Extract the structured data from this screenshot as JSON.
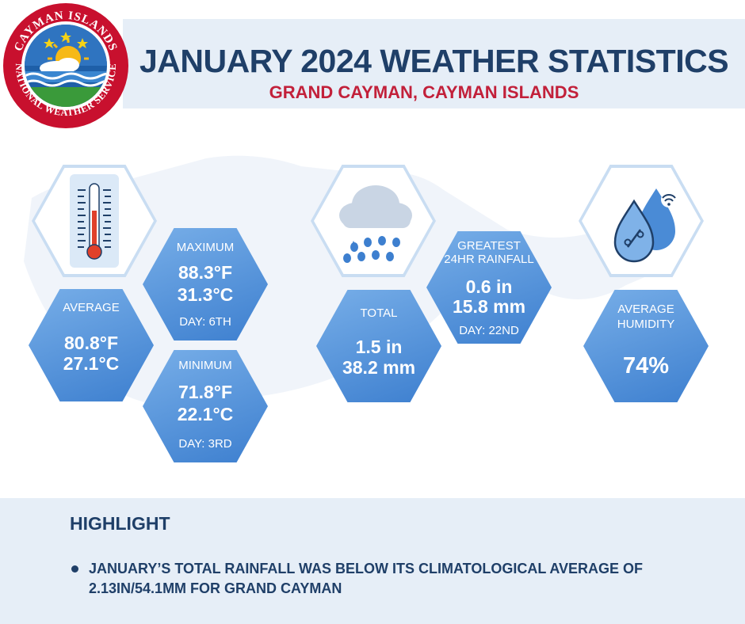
{
  "header": {
    "title": "JANUARY 2024 WEATHER STATISTICS",
    "subtitle": "GRAND CAYMAN, CAYMAN ISLANDS"
  },
  "logo": {
    "text_top": "CAYMAN ISLANDS",
    "text_bottom": "NATIONAL WEATHER SERVICE",
    "colors": {
      "ring": "#c8102e",
      "inner": "#ffffff",
      "sky": "#2a6db5",
      "sun": "#f6b916",
      "grass": "#3a9a3a"
    }
  },
  "temperature": {
    "icon": "thermometer-icon",
    "average": {
      "label": "AVERAGE",
      "f": "80.8°F",
      "c": "27.1°C"
    },
    "maximum": {
      "label": "MAXIMUM",
      "f": "88.3°F",
      "c": "31.3°C",
      "day": "DAY: 6TH"
    },
    "minimum": {
      "label": "MINIMUM",
      "f": "71.8°F",
      "c": "22.1°C",
      "day": "DAY: 3RD"
    }
  },
  "rainfall": {
    "icon": "rain-cloud-icon",
    "total": {
      "label": "TOTAL",
      "in": "1.5 in",
      "mm": "38.2 mm"
    },
    "greatest": {
      "label_line1": "GREATEST",
      "label_line2": "24HR RAINFALL",
      "in": "0.6 in",
      "mm": "15.8 mm",
      "day": "DAY: 22ND"
    }
  },
  "humidity": {
    "icon": "humidity-drops-icon",
    "average": {
      "label_line1": "AVERAGE",
      "label_line2": "HUMIDITY",
      "value": "74%"
    }
  },
  "highlight": {
    "title": "HIGHLIGHT",
    "items": [
      "JANUARY’S TOTAL RAINFALL WAS BELOW ITS CLIMATOLOGICAL AVERAGE OF 2.13IN/54.1MM FOR GRAND CAYMAN"
    ]
  },
  "colors": {
    "navy": "#1f3f68",
    "red": "#c2203a",
    "hex_blue": "#4a8bd6",
    "band": "#e6eef7"
  }
}
